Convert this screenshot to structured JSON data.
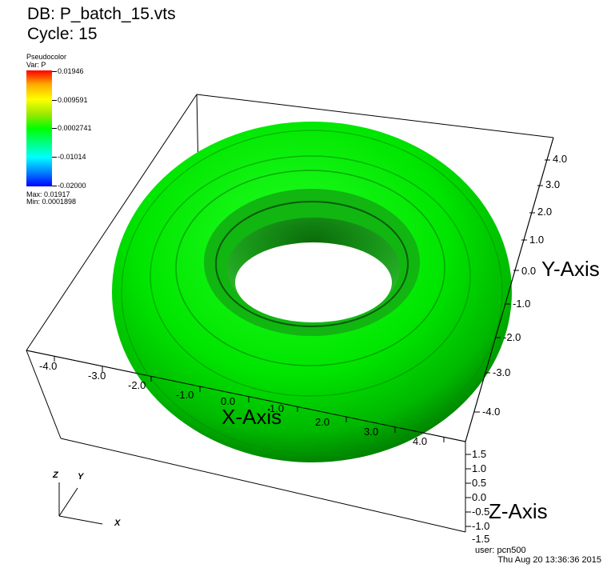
{
  "header": {
    "db_line": "DB: P_batch_15.vts",
    "cycle_line": "Cycle: 15"
  },
  "legend": {
    "plot_type": "Pseudocolor",
    "variable": "Var: P",
    "ticks": [
      "0.01946",
      "0.009591",
      "0.0002741",
      "-0.01014",
      "-0.02000"
    ],
    "max": "Max:  0.01917",
    "min": "Min:  0.0001898",
    "colors": [
      "#ff0000",
      "#ffff00",
      "#00ff00",
      "#00ffff",
      "#0000ff"
    ]
  },
  "axes": {
    "x_label": "X-Axis",
    "y_label": "Y-Axis",
    "z_label": "Z-Axis",
    "x_ticks": [
      "-4.0",
      "-3.0",
      "-2.0",
      "-1.0",
      "0.0",
      "1.0",
      "2.0",
      "3.0",
      "4.0"
    ],
    "y_ticks": [
      "4.0",
      "3.0",
      "2.0",
      "1.0",
      "0.0",
      "-1.0",
      "-2.0",
      "-3.0",
      "-4.0"
    ],
    "z_ticks": [
      "1.5",
      "1.0",
      "0.5",
      "0.0",
      "-0.5",
      "-1.0",
      "-1.5"
    ]
  },
  "triad": {
    "z": "Z",
    "y": "Y",
    "x": "X"
  },
  "footer": {
    "user": "user: pcn500",
    "timestamp": "Thu Aug 20 13:36:36 2015"
  },
  "colors": {
    "surface": "#00dd00",
    "background": "#ffffff"
  }
}
